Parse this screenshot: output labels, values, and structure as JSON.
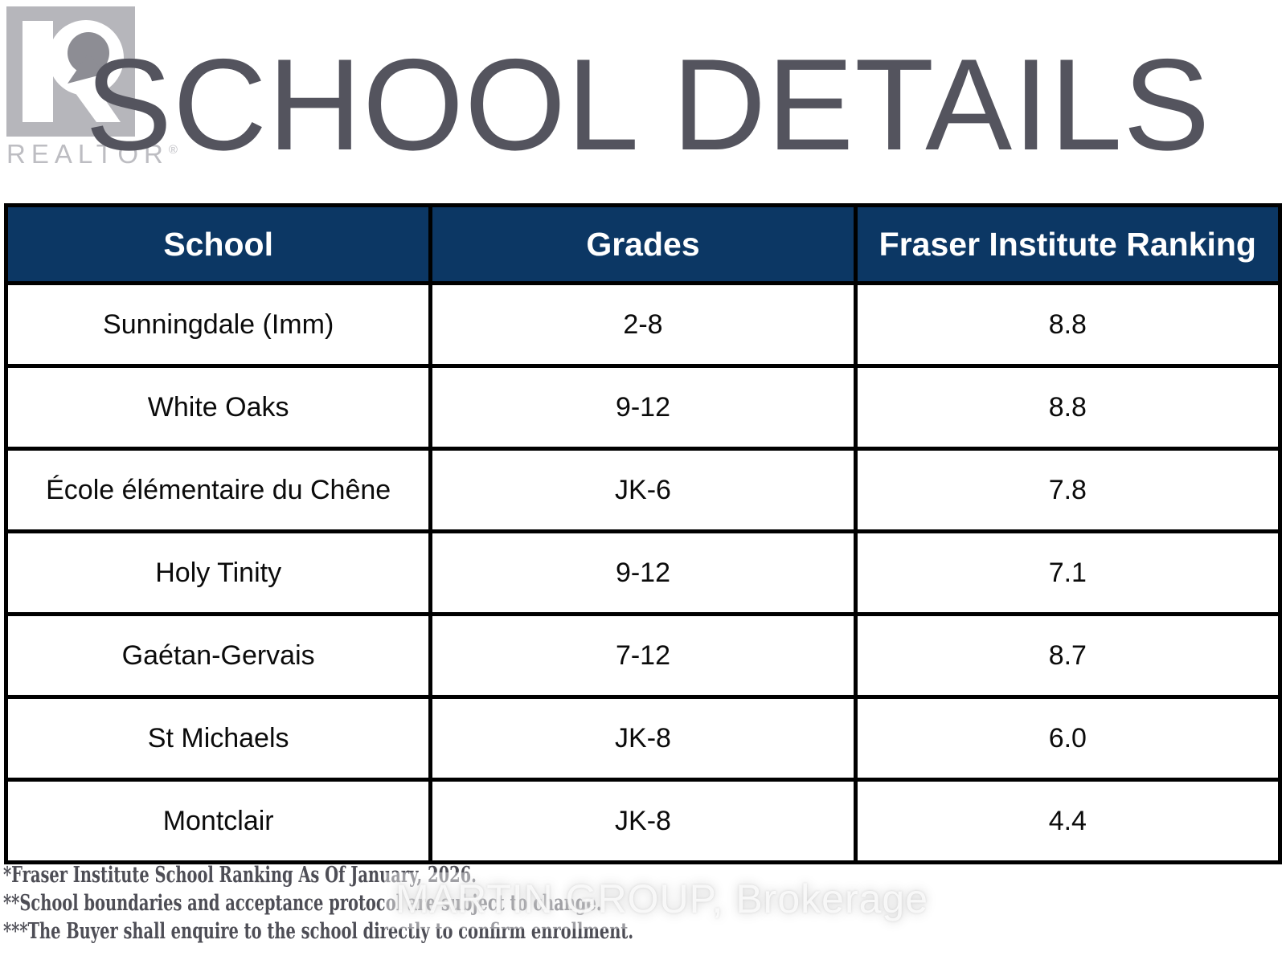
{
  "logo": {
    "wordmark": "REALTOR",
    "registered": "®"
  },
  "title": "SCHOOL DETAILS",
  "table": {
    "headers": [
      "School",
      "Grades",
      "Fraser Institute Ranking"
    ],
    "rows": [
      [
        "Sunningdale (Imm)",
        "2-8",
        "8.8"
      ],
      [
        "White Oaks",
        "9-12",
        "8.8"
      ],
      [
        "École élémentaire du Chêne",
        "JK-6",
        "7.8"
      ],
      [
        "Holy Tinity",
        "9-12",
        "7.1"
      ],
      [
        "Gaétan-Gervais",
        "7-12",
        "8.7"
      ],
      [
        "St Michaels",
        "JK-8",
        "6.0"
      ],
      [
        "Montclair",
        "JK-8",
        "4.4"
      ]
    ]
  },
  "footnotes": [
    "*Fraser Institute School Ranking  As Of  January, 2026.",
    "**School boundaries and acceptance protocol are subject to change.",
    "***The Buyer shall enquire to the school directly to confirm enrollment."
  ],
  "watermark": "MARTIN GROUP, Brokerage",
  "chart_data": {
    "type": "table",
    "title": "SCHOOL DETAILS",
    "columns": [
      "School",
      "Grades",
      "Fraser Institute Ranking"
    ],
    "schools": [
      "Sunningdale (Imm)",
      "White Oaks",
      "École élémentaire du Chêne",
      "Holy Tinity",
      "Gaétan-Gervais",
      "St Michaels",
      "Montclair"
    ],
    "grades": [
      "2-8",
      "9-12",
      "JK-6",
      "9-12",
      "7-12",
      "JK-8",
      "JK-8"
    ],
    "rankings": [
      8.8,
      8.8,
      7.8,
      7.1,
      8.7,
      6.0,
      4.4
    ]
  },
  "colors": {
    "header_bg": "#0c3764",
    "header_text": "#ffffff",
    "title_color": "#54545e",
    "body_text": "#0b0b0b",
    "border_color": "#000000",
    "footnote_color": "#4e4e56",
    "logo_gray": "#bdbdc2",
    "logo_square": "#b6b6bb",
    "watermark_color": "rgba(255,255,255,0.8)"
  }
}
